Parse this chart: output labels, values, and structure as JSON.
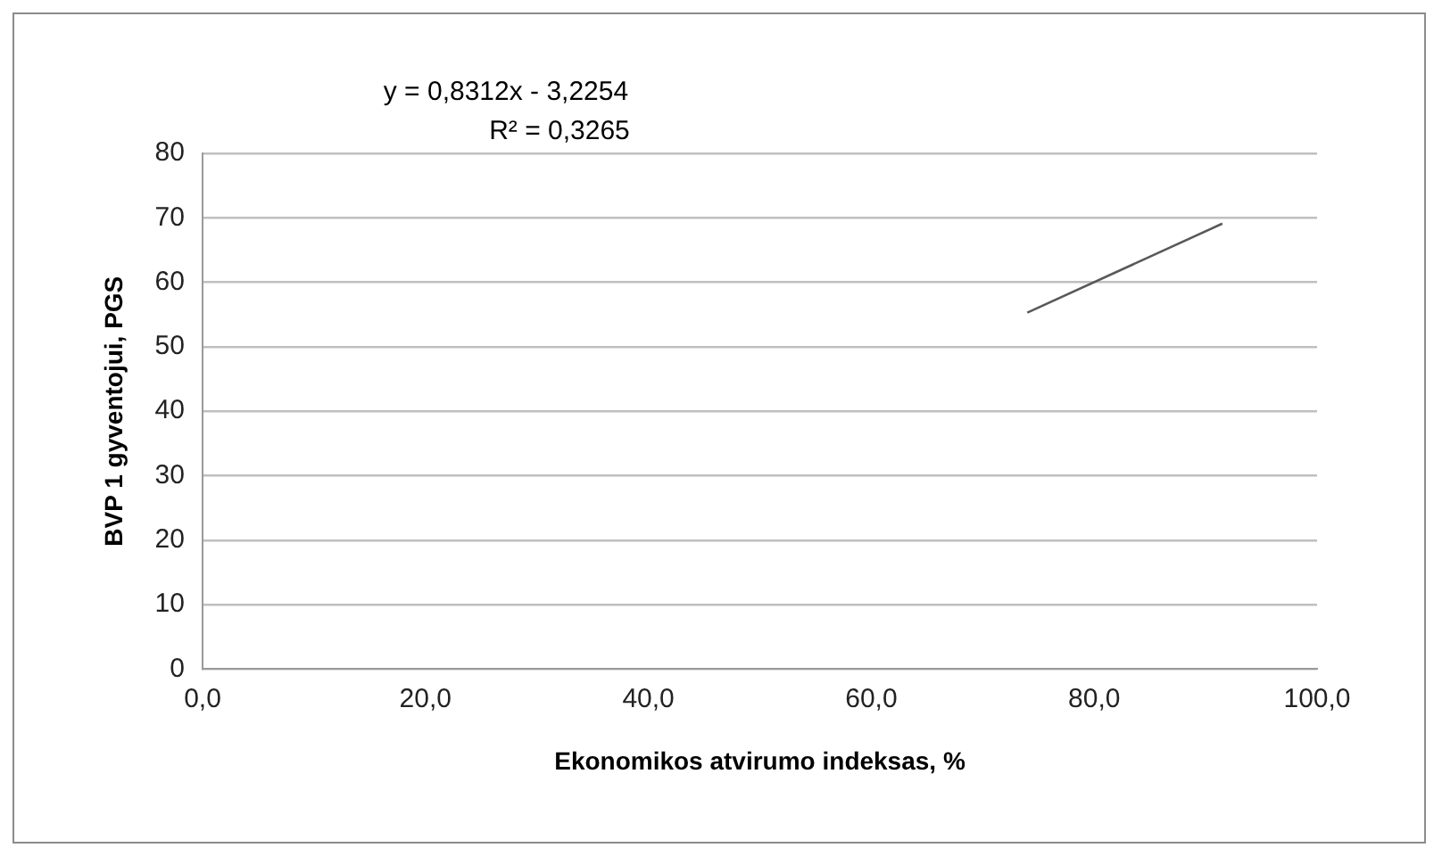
{
  "chart_data": {
    "type": "scatter",
    "xlabel": "Ekonomikos atvirumo indeksas, %",
    "ylabel": "BVP 1 gyventojui, PGS",
    "annotations": [
      "y = 0,8312x - 3,2254",
      "R² = 0,3265"
    ],
    "series": [
      {
        "type": "line",
        "x": [
          74,
          91.5
        ],
        "values": [
          55.3,
          69.1
        ],
        "color": "#595959"
      }
    ],
    "xlim": [
      0,
      100
    ],
    "xticks": [
      {
        "value": 0,
        "label": "0,0"
      },
      {
        "value": 20,
        "label": "20,0"
      },
      {
        "value": 40,
        "label": "40,0"
      },
      {
        "value": 60,
        "label": "60,0"
      },
      {
        "value": 80,
        "label": "80,0"
      },
      {
        "value": 100,
        "label": "100,0"
      }
    ],
    "ylim": [
      0,
      80
    ],
    "yticks": [
      0,
      10,
      20,
      30,
      40,
      50,
      60,
      70,
      80
    ],
    "grid": "y",
    "legend": false
  }
}
